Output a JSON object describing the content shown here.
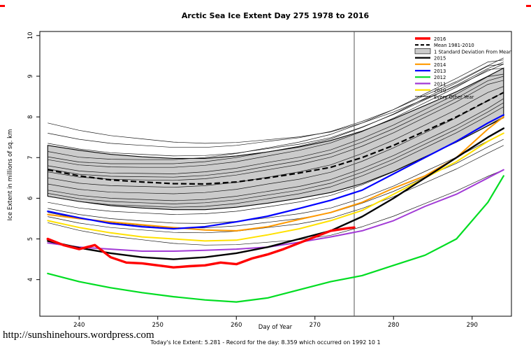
{
  "page": {
    "footer_link": "http://sunshinehours.wordpress.com",
    "footer_caption": "Today's Ice Extent: 5.281  - Record for the day: 8.359 which occurred on 1992 10 1"
  },
  "chart_data": {
    "type": "line",
    "title": "Arctic Sea Ice Extent Day 275 1978 to 2016",
    "xlabel": "Day of Year",
    "ylabel": "Ice Extent in millions of sq. km",
    "xlim": [
      235,
      295
    ],
    "ylim": [
      3.1,
      10.1
    ],
    "xticks": [
      240,
      250,
      260,
      270,
      280,
      290
    ],
    "yticks": [
      4,
      5,
      6,
      7,
      8,
      9,
      10
    ],
    "marker_line_x": 275,
    "x": [
      236,
      240,
      244,
      248,
      252,
      256,
      260,
      264,
      268,
      272,
      276,
      280,
      284,
      288,
      292,
      294
    ],
    "mean": [
      6.7,
      6.55,
      6.45,
      6.4,
      6.36,
      6.35,
      6.4,
      6.5,
      6.62,
      6.76,
      7.0,
      7.3,
      7.65,
      8.0,
      8.4,
      8.6
    ],
    "band": {
      "upper": [
        7.3,
        7.18,
        7.08,
        7.02,
        6.98,
        6.98,
        7.04,
        7.14,
        7.26,
        7.42,
        7.65,
        7.95,
        8.28,
        8.62,
        9.0,
        9.2
      ],
      "lower": [
        6.05,
        5.92,
        5.82,
        5.76,
        5.72,
        5.72,
        5.78,
        5.88,
        6.0,
        6.14,
        6.36,
        6.66,
        7.02,
        7.38,
        7.78,
        7.98
      ]
    },
    "other_years": [
      [
        5.4,
        5.21,
        5.07,
        4.98,
        4.89,
        4.85,
        4.86,
        4.92,
        4.98,
        5.09,
        5.3,
        5.56,
        5.87,
        6.18,
        6.54,
        6.7
      ],
      [
        5.55,
        5.39,
        5.28,
        5.22,
        5.16,
        5.15,
        5.19,
        5.28,
        5.37,
        5.51,
        5.75,
        6.04,
        6.38,
        6.72,
        7.11,
        7.3
      ],
      [
        5.65,
        5.5,
        5.4,
        5.33,
        5.27,
        5.27,
        5.32,
        5.41,
        5.5,
        5.64,
        5.88,
        6.17,
        6.52,
        6.86,
        7.26,
        7.45
      ],
      [
        5.75,
        5.6,
        5.5,
        5.44,
        5.39,
        5.38,
        5.43,
        5.52,
        5.62,
        5.76,
        6.0,
        6.3,
        6.66,
        7.01,
        7.41,
        7.6
      ],
      [
        5.9,
        5.76,
        5.68,
        5.64,
        5.6,
        5.62,
        5.68,
        5.79,
        5.91,
        6.07,
        6.33,
        6.65,
        7.01,
        7.38,
        7.79,
        8.0
      ],
      [
        6.05,
        5.92,
        5.84,
        5.81,
        5.78,
        5.8,
        5.87,
        5.99,
        6.11,
        6.28,
        6.55,
        6.87,
        7.24,
        7.61,
        8.03,
        8.25
      ],
      [
        6.12,
        5.99,
        5.92,
        5.89,
        5.86,
        5.89,
        5.96,
        6.08,
        6.2,
        6.37,
        6.64,
        6.96,
        7.33,
        7.7,
        8.12,
        8.35
      ],
      [
        6.2,
        6.07,
        6.0,
        5.97,
        5.94,
        5.97,
        6.05,
        6.17,
        6.29,
        6.46,
        6.73,
        7.05,
        7.42,
        7.79,
        8.21,
        8.45
      ],
      [
        6.35,
        6.22,
        6.15,
        6.13,
        6.11,
        6.14,
        6.22,
        6.35,
        6.47,
        6.64,
        6.91,
        7.24,
        7.61,
        7.98,
        8.4,
        8.6
      ],
      [
        6.5,
        6.37,
        6.31,
        6.29,
        6.27,
        6.31,
        6.39,
        6.52,
        6.65,
        6.82,
        7.1,
        7.43,
        7.8,
        8.18,
        8.6,
        8.75
      ],
      [
        6.65,
        6.52,
        6.47,
        6.45,
        6.44,
        6.48,
        6.57,
        6.7,
        6.83,
        7.01,
        7.28,
        7.61,
        7.99,
        8.37,
        8.8,
        8.9
      ],
      [
        6.72,
        6.59,
        6.54,
        6.53,
        6.52,
        6.56,
        6.65,
        6.79,
        6.92,
        7.1,
        7.38,
        7.71,
        8.08,
        8.46,
        8.89,
        9.0
      ],
      [
        6.8,
        6.67,
        6.62,
        6.61,
        6.6,
        6.65,
        6.74,
        6.88,
        7.01,
        7.19,
        7.47,
        7.8,
        8.18,
        8.56,
        8.99,
        9.05
      ],
      [
        6.95,
        6.82,
        6.77,
        6.76,
        6.76,
        6.81,
        6.9,
        7.04,
        7.18,
        7.36,
        7.64,
        7.97,
        8.35,
        8.73,
        9.16,
        9.2
      ],
      [
        7.02,
        6.89,
        6.85,
        6.85,
        6.85,
        6.9,
        7.0,
        7.14,
        7.28,
        7.46,
        7.74,
        8.07,
        8.46,
        8.84,
        9.25,
        9.3
      ],
      [
        7.15,
        7.01,
        6.96,
        6.95,
        6.95,
        7.0,
        7.1,
        7.24,
        7.38,
        7.57,
        7.85,
        8.18,
        8.57,
        8.95,
        9.35,
        9.4
      ],
      [
        7.35,
        7.21,
        7.12,
        7.08,
        7.04,
        7.05,
        7.11,
        7.22,
        7.33,
        7.49,
        7.75,
        8.06,
        8.42,
        8.78,
        9.19,
        9.35
      ],
      [
        7.6,
        7.45,
        7.35,
        7.3,
        7.25,
        7.25,
        7.3,
        7.4,
        7.49,
        7.64,
        7.89,
        8.18,
        8.53,
        8.87,
        9.26,
        9.45
      ],
      [
        7.85,
        7.67,
        7.54,
        7.46,
        7.38,
        7.35,
        7.37,
        7.44,
        7.51,
        7.63,
        7.85,
        8.12,
        8.44,
        8.76,
        9.13,
        9.3
      ]
    ],
    "series": [
      {
        "name": "2010",
        "color": "#ffe100",
        "width": 2,
        "y": [
          5.45,
          5.28,
          5.15,
          5.05,
          5.0,
          4.95,
          4.97,
          5.1,
          5.25,
          5.45,
          5.7,
          6.1,
          6.5,
          6.9,
          7.4,
          7.6
        ]
      },
      {
        "name": "2011",
        "color": "#a23bd6",
        "width": 2,
        "y": [
          4.9,
          4.8,
          4.75,
          4.7,
          4.7,
          4.72,
          4.75,
          4.8,
          4.92,
          5.05,
          5.2,
          5.45,
          5.8,
          6.1,
          6.5,
          6.7
        ]
      },
      {
        "name": "2014",
        "color": "#ff9900",
        "width": 2,
        "y": [
          5.6,
          5.5,
          5.42,
          5.35,
          5.28,
          5.22,
          5.2,
          5.3,
          5.48,
          5.65,
          5.9,
          6.25,
          6.55,
          7.0,
          7.7,
          8.0
        ]
      },
      {
        "name": "2013",
        "color": "#0000ff",
        "width": 2.2,
        "y": [
          5.68,
          5.52,
          5.38,
          5.3,
          5.25,
          5.3,
          5.42,
          5.56,
          5.75,
          5.95,
          6.2,
          6.6,
          7.0,
          7.4,
          7.85,
          8.05
        ]
      },
      {
        "name": "2012",
        "color": "#00dd22",
        "width": 2.2,
        "y": [
          4.15,
          3.95,
          3.8,
          3.68,
          3.58,
          3.5,
          3.45,
          3.55,
          3.75,
          3.95,
          4.1,
          4.35,
          4.6,
          5.0,
          5.9,
          6.55
        ]
      },
      {
        "name": "2015",
        "color": "#000000",
        "width": 2.4,
        "y": [
          4.95,
          4.78,
          4.65,
          4.55,
          4.5,
          4.55,
          4.65,
          4.8,
          5.0,
          5.2,
          5.55,
          6.0,
          6.5,
          7.0,
          7.5,
          7.72
        ]
      },
      {
        "name": "2016",
        "color": "#ff0000",
        "width": 3.4,
        "x": [
          236,
          238,
          240,
          242,
          244,
          246,
          248,
          250,
          252,
          254,
          256,
          258,
          260,
          262,
          264,
          266,
          268,
          270,
          272,
          274,
          275
        ],
        "y": [
          5.0,
          4.85,
          4.75,
          4.85,
          4.55,
          4.42,
          4.4,
          4.35,
          4.3,
          4.33,
          4.35,
          4.42,
          4.38,
          4.52,
          4.62,
          4.75,
          4.9,
          5.05,
          5.2,
          5.26,
          5.28
        ]
      }
    ],
    "legend": [
      {
        "label": "2016",
        "color": "#ff0000",
        "style": "thick"
      },
      {
        "label": "Mean 1981-2010",
        "color": "#000000",
        "style": "dashed"
      },
      {
        "label": "1 Standard Deviation From Mean",
        "color": "#cbcbcb",
        "style": "box"
      },
      {
        "label": "2015",
        "color": "#000000",
        "style": "line"
      },
      {
        "label": "2014",
        "color": "#ff9900",
        "style": "line"
      },
      {
        "label": "2013",
        "color": "#0000ff",
        "style": "line"
      },
      {
        "label": "2012",
        "color": "#00dd22",
        "style": "line"
      },
      {
        "label": "2011",
        "color": "#a23bd6",
        "style": "line"
      },
      {
        "label": "2010",
        "color": "#ffe100",
        "style": "line"
      },
      {
        "label": "Every Other Year",
        "color": "#000000",
        "style": "thin"
      }
    ]
  }
}
